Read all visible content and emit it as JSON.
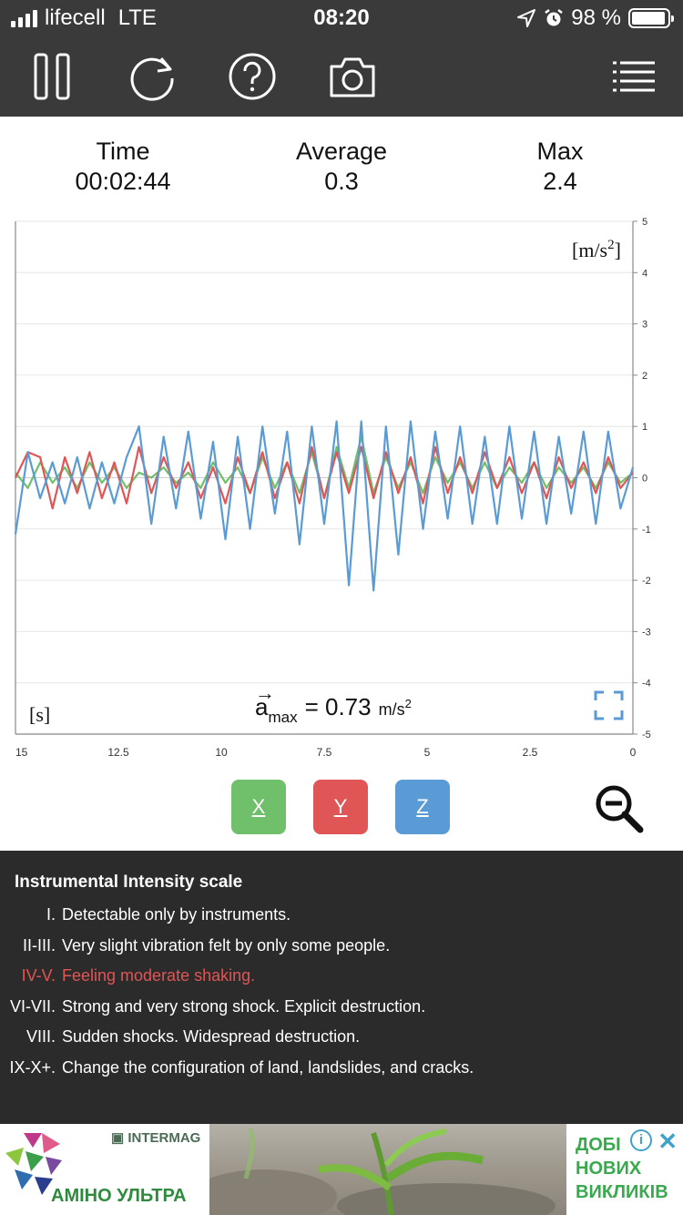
{
  "status_bar": {
    "carrier": "lifecell",
    "network": "LTE",
    "time": "08:20",
    "battery": "98 %",
    "icons": [
      "signal-icon",
      "location-arrow-icon",
      "alarm-icon",
      "battery-icon"
    ]
  },
  "toolbar": {
    "buttons": [
      "pause-icon",
      "refresh-icon",
      "help-icon",
      "camera-icon",
      "menu-icon"
    ]
  },
  "stats": {
    "time_label": "Time",
    "time_value": "00:02:44",
    "average_label": "Average",
    "average_value": "0.3",
    "max_label": "Max",
    "max_value": "2.4"
  },
  "chart_overlay": {
    "unit_y": "[m/s",
    "unit_y_sup": "2",
    "unit_y_close": "]",
    "unit_x": "[s]",
    "amax_label": "a",
    "amax_arrow": "→",
    "amax_sub": "max",
    "amax_value": "= 0.73",
    "amax_unit": "m/s",
    "amax_unit_sup": "2"
  },
  "chart_data": {
    "type": "line",
    "xlabel": "[s]",
    "ylabel": "[m/s2]",
    "xlim": [
      15,
      0
    ],
    "ylim": [
      -5,
      5
    ],
    "x_ticks": [
      "15",
      "12.5",
      "10",
      "7.5",
      "5",
      "2.5",
      "0"
    ],
    "y_ticks": [
      "5",
      "4",
      "3",
      "2",
      "1",
      "0",
      "-1",
      "-2",
      "-3",
      "-4",
      "-5"
    ],
    "grid": true,
    "x": [
      15.0,
      14.7,
      14.4,
      14.1,
      13.8,
      13.5,
      13.2,
      12.9,
      12.6,
      12.3,
      12.0,
      11.7,
      11.4,
      11.1,
      10.8,
      10.5,
      10.2,
      9.9,
      9.6,
      9.3,
      9.0,
      8.7,
      8.4,
      8.1,
      7.8,
      7.5,
      7.2,
      6.9,
      6.6,
      6.3,
      6.0,
      5.7,
      5.4,
      5.1,
      4.8,
      4.5,
      4.2,
      3.9,
      3.6,
      3.3,
      3.0,
      2.7,
      2.4,
      2.1,
      1.8,
      1.5,
      1.2,
      0.9,
      0.6,
      0.3,
      0.0
    ],
    "series": [
      {
        "name": "X",
        "color": "#6fbf6b",
        "values": [
          0.1,
          -0.2,
          0.3,
          -0.1,
          0.2,
          -0.2,
          0.3,
          -0.1,
          0.2,
          -0.2,
          0.1,
          0.0,
          0.2,
          -0.1,
          0.1,
          -0.2,
          0.3,
          -0.1,
          0.2,
          -0.3,
          0.4,
          -0.2,
          0.3,
          -0.3,
          0.5,
          -0.4,
          0.6,
          -0.2,
          0.8,
          -0.3,
          0.4,
          -0.2,
          0.3,
          -0.3,
          0.4,
          -0.1,
          0.3,
          -0.2,
          0.3,
          -0.2,
          0.2,
          -0.1,
          0.3,
          -0.2,
          0.2,
          -0.1,
          0.2,
          -0.2,
          0.3,
          -0.1,
          0.1
        ]
      },
      {
        "name": "Y",
        "color": "#e05555",
        "values": [
          0.0,
          0.5,
          0.4,
          -0.6,
          0.4,
          -0.3,
          0.5,
          -0.4,
          0.3,
          -0.5,
          0.6,
          -0.3,
          0.4,
          -0.2,
          0.3,
          -0.4,
          0.2,
          -0.5,
          0.4,
          -0.3,
          0.5,
          -0.4,
          0.3,
          -0.5,
          0.6,
          -0.4,
          0.5,
          -0.3,
          0.6,
          -0.4,
          0.5,
          -0.3,
          0.4,
          -0.5,
          0.6,
          -0.3,
          0.4,
          -0.3,
          0.5,
          -0.2,
          0.4,
          -0.3,
          0.3,
          -0.4,
          0.4,
          -0.2,
          0.3,
          -0.3,
          0.4,
          -0.2,
          0.1
        ]
      },
      {
        "name": "Z",
        "color": "#5b9bd5",
        "values": [
          -1.1,
          0.5,
          -0.4,
          0.3,
          -0.5,
          0.4,
          -0.6,
          0.3,
          -0.5,
          0.4,
          1.0,
          -0.9,
          0.8,
          -0.6,
          0.9,
          -0.8,
          0.7,
          -1.2,
          0.8,
          -1.0,
          1.0,
          -0.7,
          0.9,
          -1.3,
          1.0,
          -0.9,
          1.1,
          -2.1,
          1.1,
          -2.2,
          1.0,
          -1.5,
          1.1,
          -1.0,
          0.9,
          -0.8,
          1.0,
          -0.9,
          0.8,
          -0.9,
          1.0,
          -0.8,
          0.9,
          -0.9,
          0.8,
          -0.7,
          0.9,
          -0.9,
          0.9,
          -0.6,
          0.2
        ]
      }
    ]
  },
  "axis_buttons": [
    {
      "label": "X",
      "color": "#6fbf6b"
    },
    {
      "label": "Y",
      "color": "#e05555"
    },
    {
      "label": "Z",
      "color": "#5b9bd5"
    }
  ],
  "scale": {
    "title": "Instrumental Intensity scale",
    "rows": [
      {
        "num": "I.",
        "text": "Detectable only by instruments."
      },
      {
        "num": "II-III.",
        "text": "Very slight vibration felt by only some people."
      },
      {
        "num": "IV-V.",
        "text": "Feeling moderate shaking."
      },
      {
        "num": "VI-VII.",
        "text": "Strong and very strong shock. Explicit destruction."
      },
      {
        "num": "VIII.",
        "text": "Sudden shocks. Widespread destruction."
      },
      {
        "num": "IX-X+.",
        "text": "Change the configuration of land, landslides, and cracks."
      }
    ],
    "active_index": 2,
    "active_color": "#e05555"
  },
  "ad": {
    "brand": "INTERMAG",
    "product": "АМІНО УЛЬТРА",
    "tag_line1": "ДОБІ",
    "tag_line2": "НОВИХ",
    "tag_line3": "ВИКЛИКІВ",
    "info": "i",
    "close": "✕"
  }
}
